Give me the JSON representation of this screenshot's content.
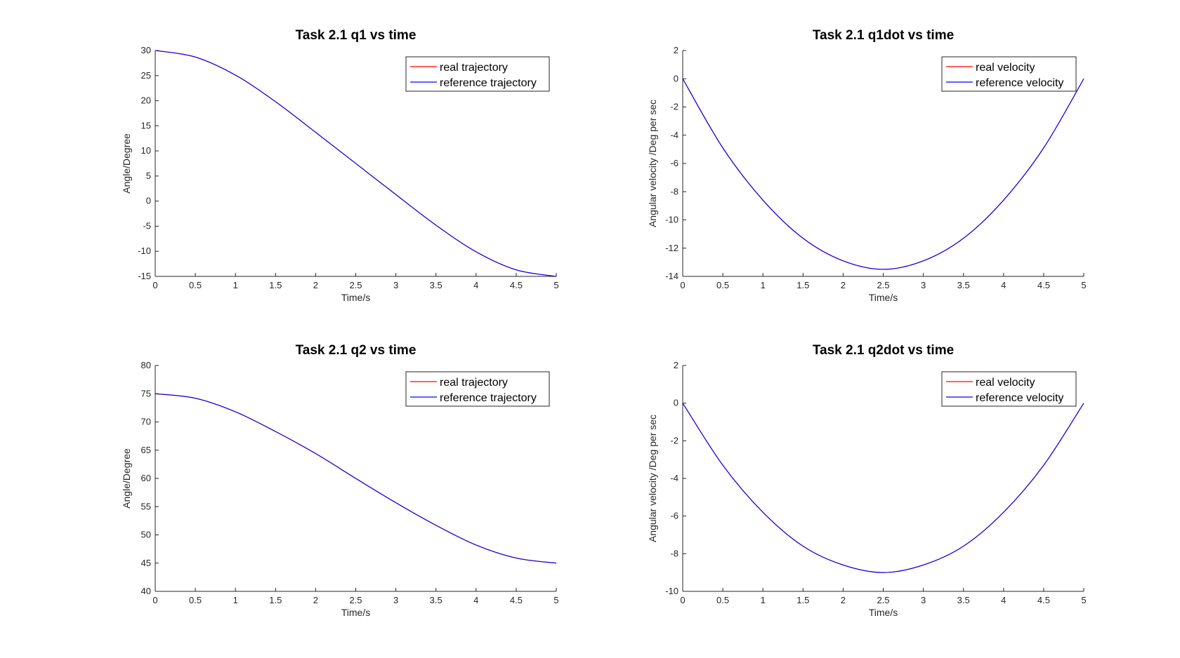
{
  "chart_data": [
    {
      "type": "line",
      "title": "Task 2.1 q1 vs time",
      "xlabel": "Time/s",
      "ylabel": "Angle/Degree",
      "xlim": [
        0,
        5
      ],
      "ylim": [
        -15,
        30
      ],
      "xticks": [
        0,
        0.5,
        1,
        1.5,
        2,
        2.5,
        3,
        3.5,
        4,
        4.5,
        5
      ],
      "yticks": [
        -15,
        -10,
        -5,
        0,
        5,
        10,
        15,
        20,
        25,
        30
      ],
      "grid": false,
      "legend_position": "top-right",
      "x": [
        0,
        0.5,
        1,
        1.5,
        2,
        2.5,
        3,
        3.5,
        4,
        4.5,
        5
      ],
      "series": [
        {
          "name": "real trajectory",
          "color": "#ff0000",
          "values": [
            30,
            28.7,
            25.1,
            19.8,
            13.7,
            7.5,
            1.3,
            -4.8,
            -10.1,
            -13.7,
            -15
          ]
        },
        {
          "name": "reference trajectory",
          "color": "#0000ff",
          "values": [
            30,
            28.7,
            25.1,
            19.8,
            13.7,
            7.5,
            1.3,
            -4.8,
            -10.1,
            -13.7,
            -15
          ]
        }
      ]
    },
    {
      "type": "line",
      "title": "Task 2.1 q1dot vs time",
      "xlabel": "Time/s",
      "ylabel": "Angular velocity /Deg per sec",
      "xlim": [
        0,
        5
      ],
      "ylim": [
        -14,
        2
      ],
      "xticks": [
        0,
        0.5,
        1,
        1.5,
        2,
        2.5,
        3,
        3.5,
        4,
        4.5,
        5
      ],
      "yticks": [
        -14,
        -12,
        -10,
        -8,
        -6,
        -4,
        -2,
        0,
        2
      ],
      "grid": false,
      "legend_position": "top-right",
      "x": [
        0,
        0.5,
        1,
        1.5,
        2,
        2.5,
        3,
        3.5,
        4,
        4.5,
        5
      ],
      "series": [
        {
          "name": "real velocity",
          "color": "#ff0000",
          "values": [
            0,
            -4.9,
            -8.6,
            -11.3,
            -12.9,
            -13.5,
            -12.9,
            -11.3,
            -8.6,
            -4.9,
            0
          ]
        },
        {
          "name": "reference velocity",
          "color": "#0000ff",
          "values": [
            0,
            -4.9,
            -8.6,
            -11.3,
            -12.9,
            -13.5,
            -12.9,
            -11.3,
            -8.6,
            -4.9,
            0
          ]
        }
      ]
    },
    {
      "type": "line",
      "title": "Task 2.1 q2 vs time",
      "xlabel": "Time/s",
      "ylabel": "Angle/Degree",
      "xlim": [
        0,
        5
      ],
      "ylim": [
        40,
        80
      ],
      "xticks": [
        0,
        0.5,
        1,
        1.5,
        2,
        2.5,
        3,
        3.5,
        4,
        4.5,
        5
      ],
      "yticks": [
        40,
        45,
        50,
        55,
        60,
        65,
        70,
        75,
        80
      ],
      "grid": false,
      "legend_position": "top-right",
      "x": [
        0,
        0.5,
        1,
        1.5,
        2,
        2.5,
        3,
        3.5,
        4,
        4.5,
        5
      ],
      "series": [
        {
          "name": "real trajectory",
          "color": "#ff0000",
          "values": [
            75,
            74.2,
            71.8,
            68.3,
            64.4,
            60.0,
            55.7,
            51.7,
            48.2,
            45.9,
            45
          ]
        },
        {
          "name": "reference trajectory",
          "color": "#0000ff",
          "values": [
            75,
            74.2,
            71.8,
            68.3,
            64.4,
            60.0,
            55.7,
            51.7,
            48.2,
            45.9,
            45
          ]
        }
      ]
    },
    {
      "type": "line",
      "title": "Task 2.1 q2dot vs time",
      "xlabel": "Time/s",
      "ylabel": "Angular velocity /Deg per sec",
      "xlim": [
        0,
        5
      ],
      "ylim": [
        -10,
        2
      ],
      "xticks": [
        0,
        0.5,
        1,
        1.5,
        2,
        2.5,
        3,
        3.5,
        4,
        4.5,
        5
      ],
      "yticks": [
        -10,
        -8,
        -6,
        -4,
        -2,
        0,
        2
      ],
      "grid": false,
      "legend_position": "top-right",
      "x": [
        0,
        0.5,
        1,
        1.5,
        2,
        2.5,
        3,
        3.5,
        4,
        4.5,
        5
      ],
      "series": [
        {
          "name": "real velocity",
          "color": "#ff0000",
          "values": [
            0,
            -3.3,
            -5.8,
            -7.6,
            -8.6,
            -9.0,
            -8.6,
            -7.6,
            -5.8,
            -3.3,
            0
          ]
        },
        {
          "name": "reference velocity",
          "color": "#0000ff",
          "values": [
            0,
            -3.3,
            -5.8,
            -7.6,
            -8.6,
            -9.0,
            -8.6,
            -7.6,
            -5.8,
            -3.3,
            0
          ]
        }
      ]
    }
  ]
}
